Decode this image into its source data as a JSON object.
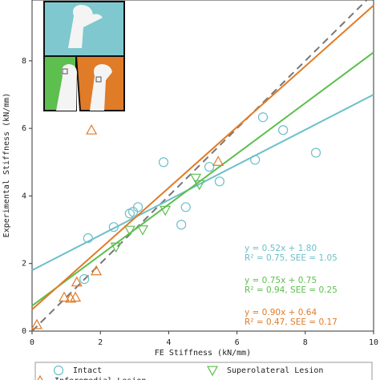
{
  "chart_data": {
    "type": "scatter",
    "xlabel": "FE Stiffness (kN/mm)",
    "ylabel": "Experimental Stiffness (kN/mm)",
    "xlim": [
      0,
      10
    ],
    "ylim": [
      0,
      9.8
    ],
    "xticks": [
      0,
      2,
      4,
      6,
      8,
      10
    ],
    "yticks": [
      0,
      2,
      4,
      6,
      8
    ],
    "series": [
      {
        "name": "Intact",
        "color": "#6cbfc9",
        "marker": "circle",
        "x": [
          1.53,
          1.64,
          2.39,
          2.86,
          2.96,
          3.1,
          3.85,
          4.37,
          4.5,
          5.19,
          5.49,
          6.53,
          6.76,
          7.35,
          8.31
        ],
        "values": [
          1.54,
          2.75,
          3.08,
          3.48,
          3.53,
          3.67,
          5.0,
          3.15,
          3.67,
          4.86,
          4.43,
          5.07,
          6.33,
          5.95,
          5.28
        ],
        "fit": {
          "slope": 0.52,
          "intercept": 1.8
        },
        "annotation": [
          "y = 0.52x + 1.80",
          "R² = 0.75,  SEE = 1.05"
        ]
      },
      {
        "name": "Superolateral Lesion",
        "color": "#5cbf4e",
        "marker": "triangle-down",
        "x": [
          2.46,
          2.86,
          3.24,
          3.9,
          4.79,
          4.9
        ],
        "values": [
          2.49,
          2.99,
          3.0,
          3.58,
          4.53,
          4.34
        ],
        "fit": {
          "slope": 0.75,
          "intercept": 0.75
        },
        "annotation": [
          "y = 0.75x + 0.75",
          "R² = 0.94,  SEE = 0.25"
        ]
      },
      {
        "name": "Inferomedial Lesion",
        "color": "#e07b28",
        "marker": "triangle-up",
        "x": [
          0.14,
          0.94,
          1.13,
          1.27,
          1.31,
          1.74,
          1.88,
          5.45
        ],
        "values": [
          0.19,
          1.0,
          0.97,
          1.0,
          1.45,
          5.95,
          1.78,
          5.02
        ],
        "fit": {
          "slope": 0.9,
          "intercept": 0.64
        },
        "annotation": [
          "y = 0.90x + 0.64",
          "R² = 0.47,  SEE = 0.17"
        ]
      }
    ]
  }
}
